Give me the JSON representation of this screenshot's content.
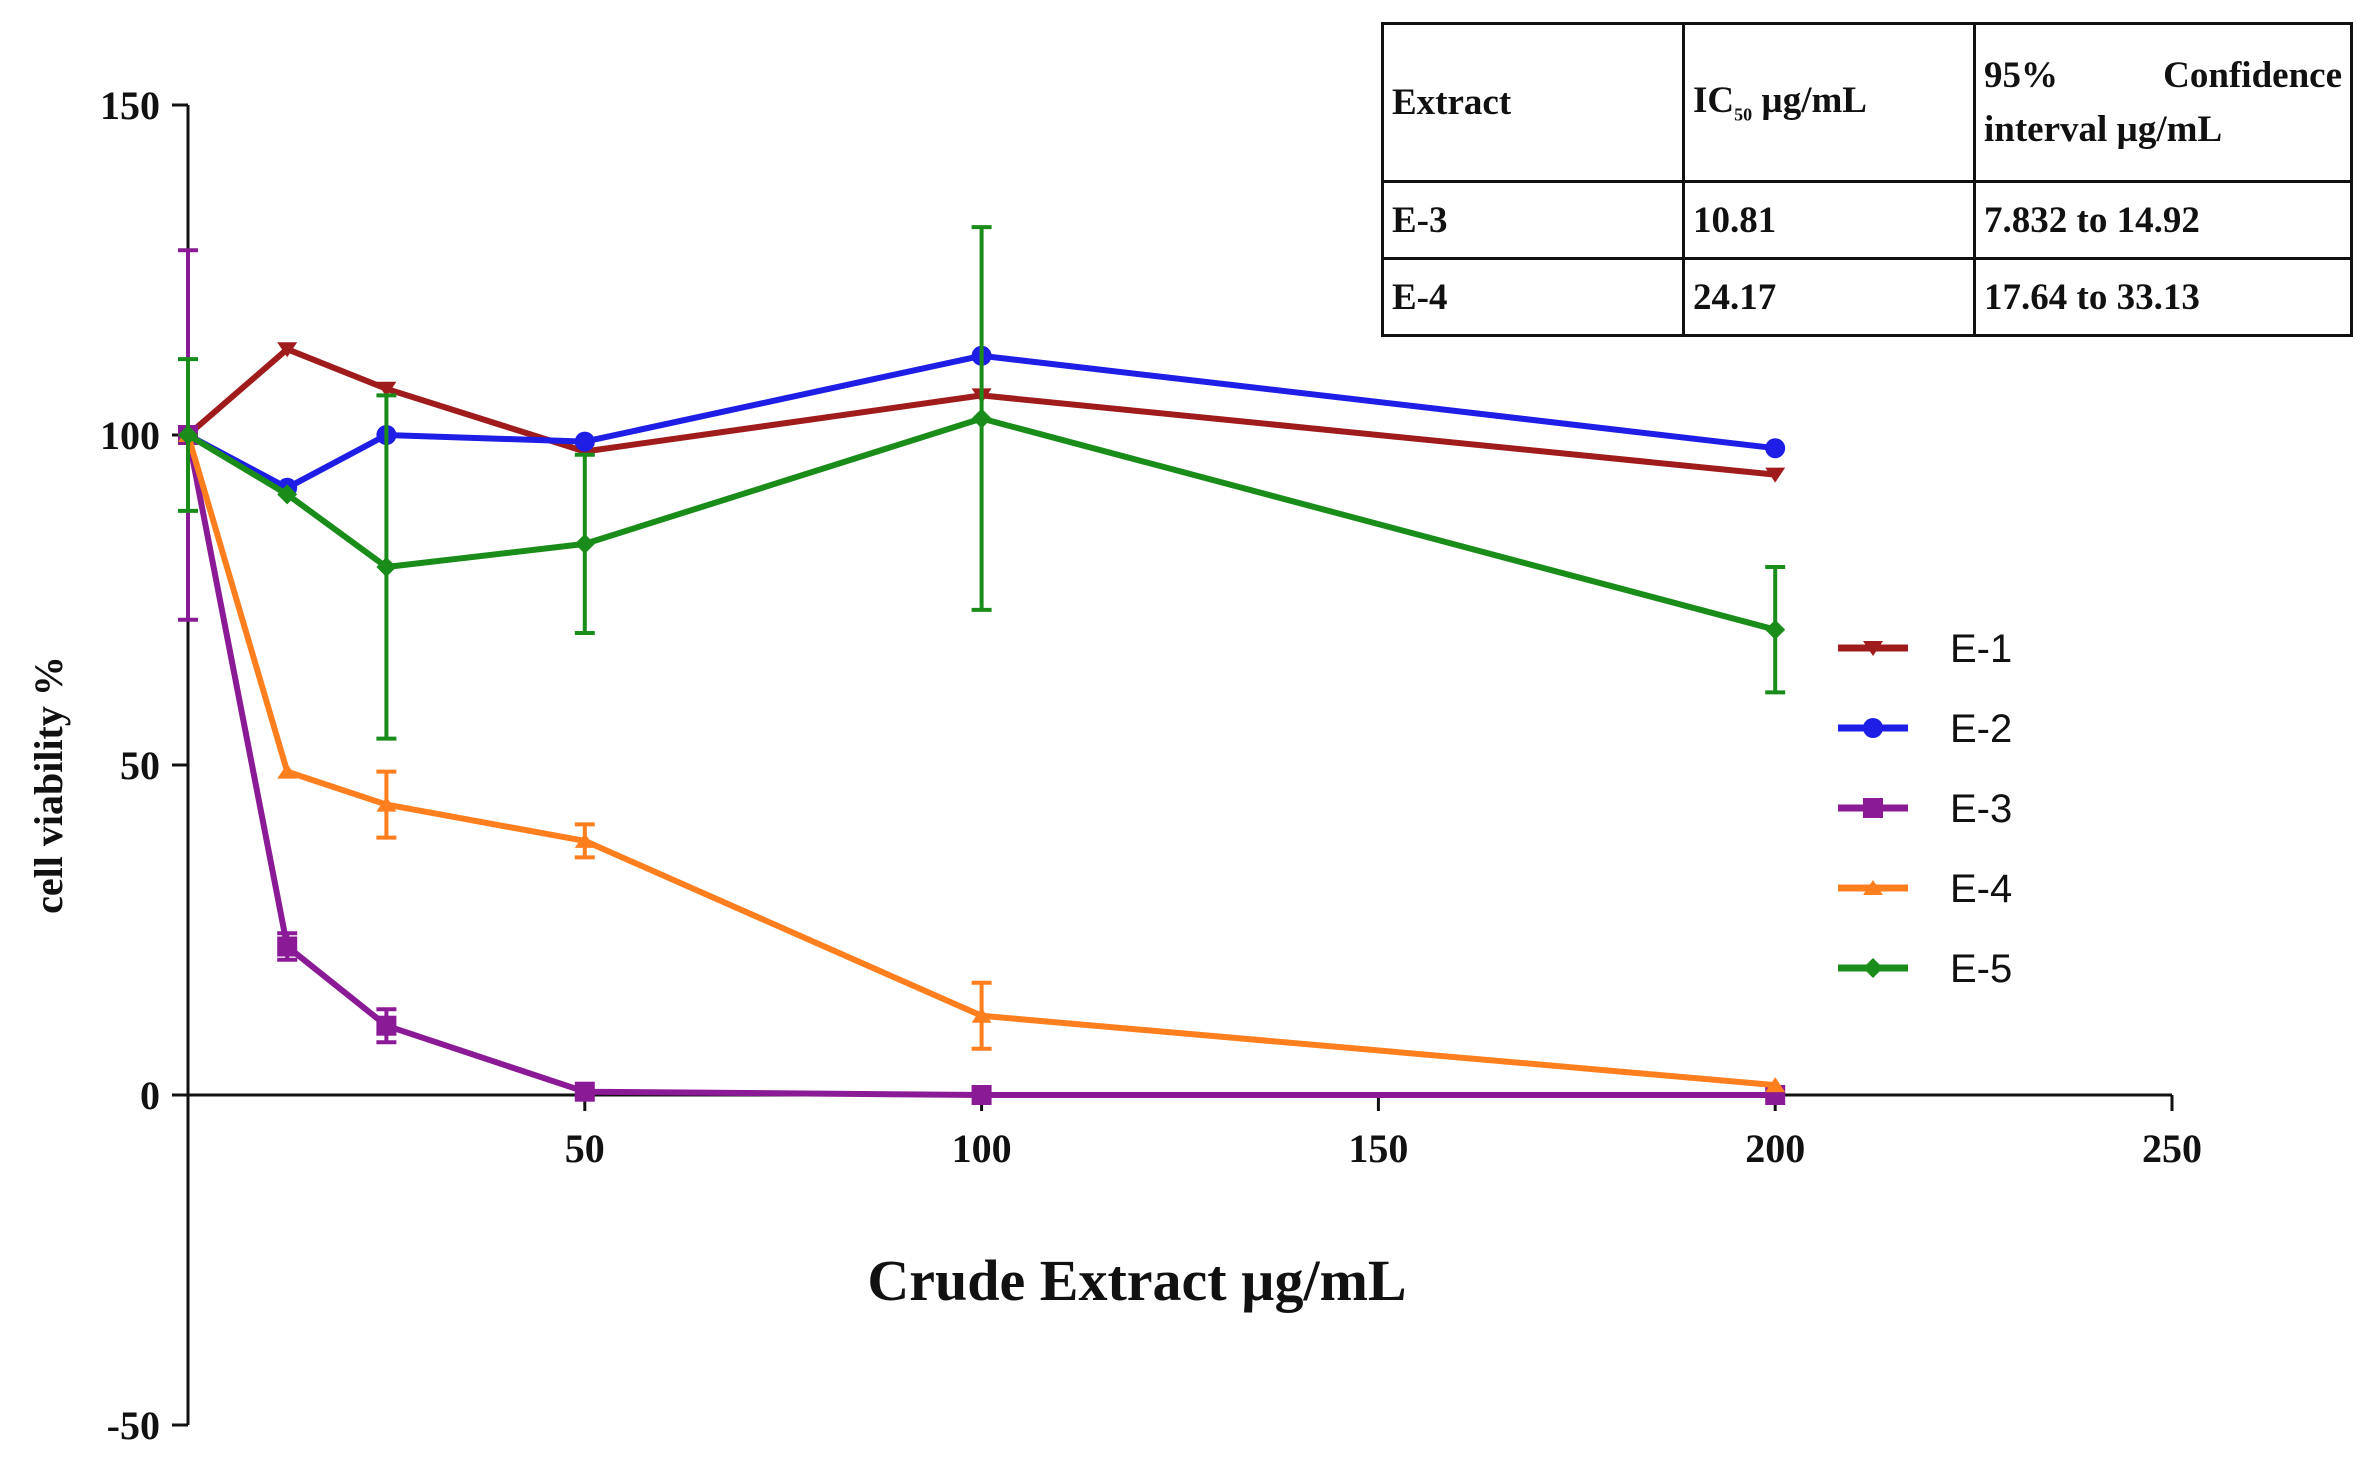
{
  "chart_data": {
    "type": "line",
    "xlabel": "Crude Extract µg/mL",
    "ylabel": "cell viability %",
    "xlim": [
      0,
      250
    ],
    "ylim": [
      -50,
      150
    ],
    "x_ticks": [
      50,
      100,
      150,
      200,
      250
    ],
    "y_ticks": [
      150,
      100,
      50,
      0,
      -50
    ],
    "legend_position": "right",
    "x": [
      0,
      12.5,
      25,
      50,
      100,
      200
    ],
    "series": [
      {
        "name": "E-1",
        "color": "#a01c1c",
        "marker": "triangle-down",
        "values": [
          100,
          113,
          107,
          97.5,
          106,
          94
        ],
        "err": [
          0,
          0,
          0,
          0,
          0,
          0
        ]
      },
      {
        "name": "E-2",
        "color": "#1e1ee6",
        "marker": "circle",
        "values": [
          100,
          92,
          100,
          99,
          112,
          98
        ],
        "err": [
          0,
          0,
          0,
          0,
          0,
          0
        ]
      },
      {
        "name": "E-3",
        "color": "#8b1a96",
        "marker": "square",
        "values": [
          100,
          22.5,
          10.5,
          0.5,
          0,
          0
        ],
        "err": [
          28,
          2,
          2.5,
          0,
          0,
          0
        ]
      },
      {
        "name": "E-4",
        "color": "#ff7f1e",
        "marker": "triangle-up",
        "values": [
          100,
          49,
          44,
          38.5,
          12,
          1.5
        ],
        "err": [
          0,
          0,
          5,
          2.5,
          5,
          0
        ]
      },
      {
        "name": "E-5",
        "color": "#1a8c1a",
        "marker": "diamond",
        "values": [
          100,
          91,
          80,
          83.5,
          102.5,
          70.5
        ],
        "err": [
          11.5,
          0,
          26,
          13.5,
          29,
          9.5
        ]
      }
    ]
  },
  "table": {
    "headers": {
      "extract": "Extract",
      "ic50_main": "IC",
      "ic50_sub": "50",
      "ic50_unit": " µg/mL",
      "ci_word1": "95%",
      "ci_word2": "Confidence",
      "ci_line2": "interval µg/mL"
    },
    "rows": [
      {
        "extract": "E-3",
        "ic50": "10.81",
        "ci": "7.832 to 14.92"
      },
      {
        "extract": "E-4",
        "ic50": "24.17",
        "ci": "17.64 to 33.13"
      }
    ]
  }
}
